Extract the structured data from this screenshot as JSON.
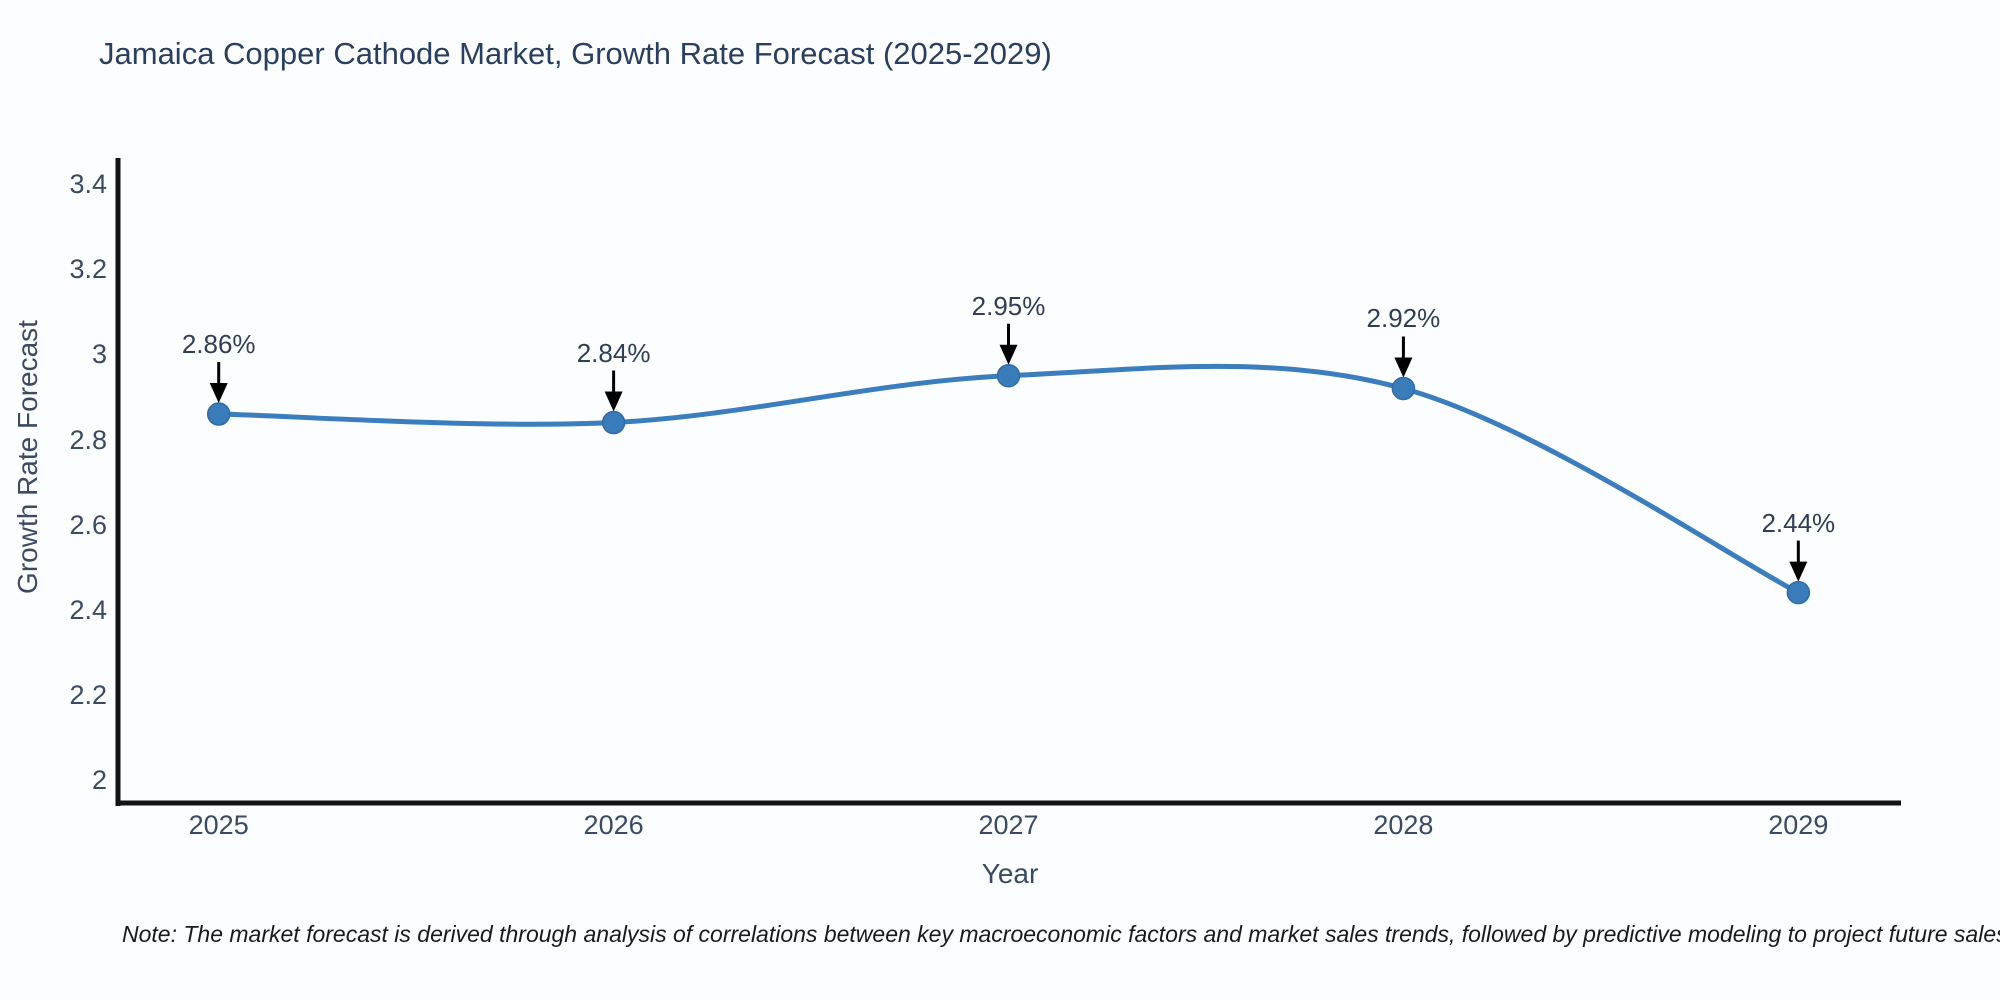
{
  "page": {
    "background": "#fcfdfe"
  },
  "note": {
    "text": "Note: The market forecast is derived through analysis of correlations between key macroeconomic factors and market sales trends, followed by predictive modeling to project future sales"
  },
  "chart_data": {
    "type": "line",
    "title": "Jamaica Copper Cathode Market, Growth Rate Forecast (2025-2029)",
    "xlabel": "Year",
    "ylabel": "Growth Rate Forecast",
    "x": [
      2025,
      2026,
      2027,
      2028,
      2029
    ],
    "series": [
      {
        "name": "Growth Rate Forecast",
        "values": [
          2.86,
          2.84,
          2.95,
          2.92,
          2.44
        ]
      }
    ],
    "point_labels": [
      "2.86%",
      "2.84%",
      "2.95%",
      "2.92%",
      "2.44%"
    ],
    "xtick_labels": [
      "2025",
      "2026",
      "2027",
      "2028",
      "2029"
    ],
    "ytick_values": [
      2,
      2.2,
      2.4,
      2.6,
      2.8,
      3,
      3.2,
      3.4
    ],
    "ytick_labels": [
      "2",
      "2.2",
      "2.4",
      "2.6",
      "2.8",
      "3",
      "3.2",
      "3.4"
    ],
    "xlim": [
      2024.745,
      2029.26
    ],
    "ylim": [
      1.95,
      3.462
    ],
    "grid": false,
    "legend": "none",
    "line_shape": "spline",
    "markers": true,
    "annotation_arrows": true,
    "colors": {
      "line": "#3c7ebd",
      "marker_fill": "#3a7cba",
      "marker_stroke": "#2f6ba8",
      "axis": "#131313",
      "arrow": "#000000",
      "title_text": "#2a3f5f",
      "tick_text": "#3b4a63",
      "note_text": "#1a1a1a"
    }
  }
}
